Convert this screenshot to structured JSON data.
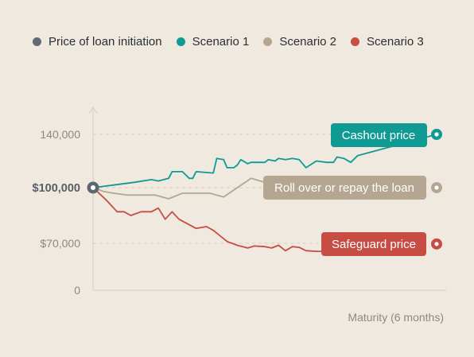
{
  "legend": [
    {
      "label": "Price of loan initiation",
      "color": "#646a73"
    },
    {
      "label": "Scenario 1",
      "color": "#0f9b94"
    },
    {
      "label": "Scenario 2",
      "color": "#b5a691"
    },
    {
      "label": "Scenario 3",
      "color": "#c64c44"
    }
  ],
  "colors": {
    "axis": "#d9d2c8",
    "gridline": "#d8cdb8",
    "start_marker": "#5f6670"
  },
  "chart_data": {
    "type": "line",
    "title": "",
    "xlabel": "Maturity (6 months)",
    "ylabel": "",
    "ylim": [
      0,
      150000
    ],
    "y_ticks": [
      {
        "value": 140000,
        "label": "140,000",
        "bold": false
      },
      {
        "value": 100000,
        "label": "$100,000",
        "bold": true
      },
      {
        "value": 70000,
        "label": "$70,000",
        "bold": false
      },
      {
        "value": 0,
        "label": "0",
        "bold": false
      }
    ],
    "start": {
      "x": 0,
      "y": 100000
    },
    "series": [
      {
        "name": "Scenario 1",
        "color": "#0f9b94",
        "values": [
          [
            0,
            100000
          ],
          [
            6,
            102000
          ],
          [
            12,
            104000
          ],
          [
            17,
            106000
          ],
          [
            19,
            105000
          ],
          [
            22,
            107000
          ],
          [
            23,
            112000
          ],
          [
            26,
            112000
          ],
          [
            28,
            107000
          ],
          [
            29,
            107000
          ],
          [
            30,
            112000
          ],
          [
            35,
            111000
          ],
          [
            36,
            122000
          ],
          [
            38,
            121000
          ],
          [
            39,
            115000
          ],
          [
            41,
            115000
          ],
          [
            42,
            117000
          ],
          [
            43,
            121000
          ],
          [
            45,
            118000
          ],
          [
            46,
            119000
          ],
          [
            50,
            119000
          ],
          [
            51,
            121000
          ],
          [
            53,
            120000
          ],
          [
            54,
            122000
          ],
          [
            56,
            121000
          ],
          [
            58,
            122000
          ],
          [
            60,
            121000
          ],
          [
            62,
            115000
          ],
          [
            65,
            120000
          ],
          [
            68,
            119000
          ],
          [
            70,
            119000
          ],
          [
            71,
            123000
          ],
          [
            73,
            122000
          ],
          [
            75,
            119000
          ],
          [
            77,
            124000
          ],
          [
            100,
            140000
          ]
        ],
        "callout": "Cashout price"
      },
      {
        "name": "Scenario 2",
        "color": "#b5a691",
        "values": [
          [
            0,
            100000
          ],
          [
            3,
            98000
          ],
          [
            6,
            97000
          ],
          [
            10,
            96000
          ],
          [
            14,
            96000
          ],
          [
            18,
            96000
          ],
          [
            22,
            94000
          ],
          [
            26,
            97000
          ],
          [
            30,
            97000
          ],
          [
            34,
            97000
          ],
          [
            38,
            95000
          ],
          [
            42,
            100000
          ],
          [
            46,
            107000
          ],
          [
            50,
            104000
          ],
          [
            53,
            102000
          ],
          [
            57,
            105000
          ],
          [
            60,
            103000
          ],
          [
            64,
            101000
          ],
          [
            68,
            101000
          ],
          [
            72,
            101000
          ],
          [
            76,
            101000
          ],
          [
            80,
            100000
          ]
        ],
        "callout": "Roll over or repay the loan"
      },
      {
        "name": "Scenario 3",
        "color": "#c64c44",
        "values": [
          [
            0,
            100000
          ],
          [
            4,
            93000
          ],
          [
            7,
            87000
          ],
          [
            9,
            87000
          ],
          [
            11,
            85000
          ],
          [
            14,
            87000
          ],
          [
            17,
            87000
          ],
          [
            19,
            89000
          ],
          [
            21,
            83000
          ],
          [
            23,
            87000
          ],
          [
            25,
            83000
          ],
          [
            28,
            80000
          ],
          [
            30,
            78000
          ],
          [
            33,
            79000
          ],
          [
            35,
            77000
          ],
          [
            39,
            71000
          ],
          [
            42,
            67000
          ],
          [
            45,
            63000
          ],
          [
            47,
            66000
          ],
          [
            50,
            65000
          ],
          [
            52,
            63000
          ],
          [
            54,
            67000
          ],
          [
            56,
            59000
          ],
          [
            58,
            65000
          ],
          [
            60,
            64000
          ],
          [
            62,
            59000
          ],
          [
            65,
            58000
          ],
          [
            70,
            58000
          ],
          [
            73,
            59000
          ],
          [
            75,
            63000
          ],
          [
            77,
            64000
          ],
          [
            79,
            66000
          ],
          [
            81,
            61000
          ],
          [
            83,
            62000
          ],
          [
            84,
            59000
          ]
        ],
        "callout": "Safeguard price"
      }
    ]
  }
}
